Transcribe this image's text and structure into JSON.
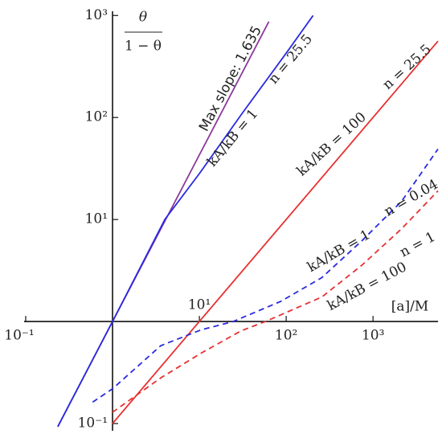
{
  "chart_data": {
    "type": "line",
    "xlabel": "[a]/M",
    "ylabel_numerator": "θ",
    "ylabel_denominator": "1 − θ",
    "log_x": true,
    "log_y": true,
    "xlim": [
      0.1,
      5600
    ],
    "ylim": [
      0.085,
      1100
    ],
    "xticks": [
      {
        "value": 0.1,
        "label": "10⁻¹"
      },
      {
        "value": 10,
        "label": "10¹"
      },
      {
        "value": 100,
        "label": "10²"
      },
      {
        "value": 1000,
        "label": "10³"
      }
    ],
    "yticks": [
      {
        "value": 0.1,
        "label": "10⁻¹"
      },
      {
        "value": 10,
        "label": "10¹"
      },
      {
        "value": 100,
        "label": "10²"
      },
      {
        "value": 1000,
        "label": "10³"
      }
    ],
    "series": [
      {
        "color": "#8b3a9b",
        "dash": false,
        "x": [
          0.234,
          63.1
        ],
        "values": [
          0.0933,
          871
        ]
      },
      {
        "color": "#2a2ae0",
        "dash": false,
        "x": [
          0.234,
          1,
          2,
          4,
          10,
          31.6,
          100,
          204
        ],
        "values": [
          0.0933,
          1,
          3.16,
          10,
          28.2,
          112,
          427,
          1000
        ]
      },
      {
        "color": "#e83030",
        "dash": false,
        "x": [
          1,
          5600
        ],
        "values": [
          0.1,
          560
        ]
      },
      {
        "color": "#2a2ae0",
        "dash": true,
        "x": [
          0.59,
          1,
          3.6,
          10.5,
          24.5,
          87,
          257,
          741,
          2138,
          5600
        ],
        "values": [
          0.162,
          0.219,
          0.58,
          0.83,
          1,
          1.58,
          2.69,
          6.17,
          15.1,
          49
        ]
      },
      {
        "color": "#e83030",
        "dash": true,
        "x": [
          1,
          3.63,
          10.5,
          30.2,
          57.5,
          257,
          741,
          2138,
          5600
        ],
        "values": [
          0.129,
          0.282,
          0.49,
          0.81,
          1,
          1.74,
          3.55,
          8.13,
          19.1
        ]
      }
    ],
    "annotations": [
      "Max slope: 1.635",
      "n = 25.5",
      "kA/kB = 1",
      "kA/kB = 100",
      "n = 25.5",
      "kA/kB = 1",
      "n = 0.04",
      "kA/kB = 100",
      "n = 1"
    ]
  }
}
